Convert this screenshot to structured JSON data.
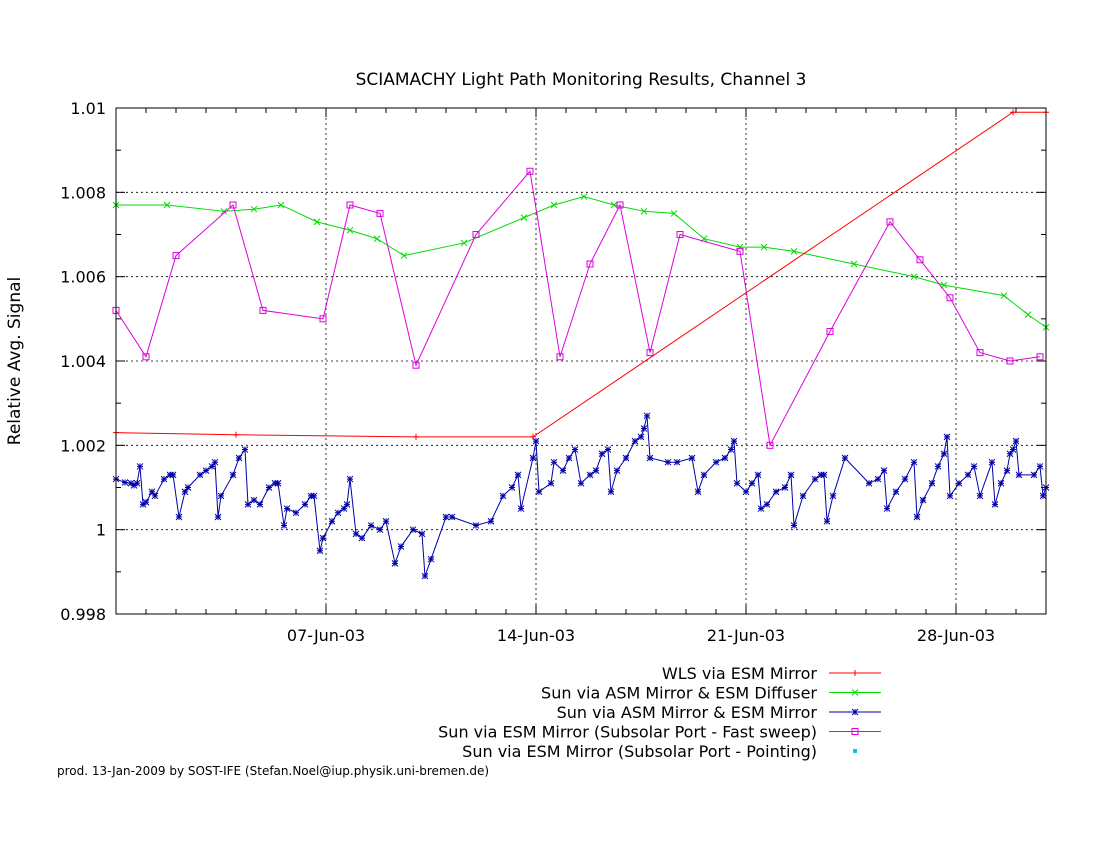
{
  "chart_data": {
    "type": "line",
    "title": "SCIAMACHY Light Path Monitoring Results, Channel 3",
    "xlabel": "",
    "ylabel": "Relative Avg. Signal",
    "xlim": [
      "2003-05-31",
      "2003-07-01"
    ],
    "ylim": [
      0.998,
      1.01
    ],
    "x_ticks": [
      "2003-06-07",
      "2003-06-14",
      "2003-06-21",
      "2003-06-28"
    ],
    "x_tick_labels": [
      "07-Jun-03",
      "14-Jun-03",
      "21-Jun-03",
      "28-Jun-03"
    ],
    "y_ticks": [
      0.998,
      1,
      1.002,
      1.004,
      1.006,
      1.008,
      1.01
    ],
    "y_tick_labels": [
      "0.998",
      "1",
      "1.002",
      "1.004",
      "1.006",
      "1.008",
      "1.01"
    ],
    "grid": true,
    "legend_position": "bottom-right",
    "series": [
      {
        "name": "WLS via ESM Mirror",
        "color": "#ff0000",
        "marker": "plus",
        "points": [
          [
            "2003-05-31",
            1.0023
          ],
          [
            "2003-06-04",
            1.00225
          ],
          [
            "2003-06-10",
            1.0022
          ],
          [
            "2003-06-13.9",
            1.0022
          ],
          [
            "2003-06-29.9",
            1.0099
          ],
          [
            "2003-07-01",
            1.0099
          ]
        ]
      },
      {
        "name": "Sun via ASM Mirror & ESM Diffuser",
        "color": "#00dd00",
        "marker": "cross",
        "points": [
          [
            "2003-05-31",
            1.0077
          ],
          [
            "2003-06-01.7",
            1.0077
          ],
          [
            "2003-06-03.6",
            1.00755
          ],
          [
            "2003-06-04.6",
            1.0076
          ],
          [
            "2003-06-05.5",
            1.0077
          ],
          [
            "2003-06-06.7",
            1.0073
          ],
          [
            "2003-06-07.8",
            1.0071
          ],
          [
            "2003-06-08.7",
            1.0069
          ],
          [
            "2003-06-09.6",
            1.0065
          ],
          [
            "2003-06-11.6",
            1.0068
          ],
          [
            "2003-06-13.6",
            1.0074
          ],
          [
            "2003-06-14.6",
            1.0077
          ],
          [
            "2003-06-15.6",
            1.0079
          ],
          [
            "2003-06-16.6",
            1.0077
          ],
          [
            "2003-06-17.6",
            1.00755
          ],
          [
            "2003-06-18.6",
            1.0075
          ],
          [
            "2003-06-19.6",
            1.0069
          ],
          [
            "2003-06-20.8",
            1.0067
          ],
          [
            "2003-06-21.6",
            1.0067
          ],
          [
            "2003-06-22.6",
            1.0066
          ],
          [
            "2003-06-24.6",
            1.0063
          ],
          [
            "2003-06-26.6",
            1.006
          ],
          [
            "2003-06-27.6",
            1.0058
          ],
          [
            "2003-06-29.6",
            1.00555
          ],
          [
            "2003-06-30.4",
            1.0051
          ],
          [
            "2003-07-01",
            1.0048
          ]
        ]
      },
      {
        "name": "Sun via ASM Mirror & ESM Mirror",
        "color": "#0000aa",
        "marker": "star",
        "points": [
          [
            "2003-05-31",
            1.0012
          ],
          [
            "2003-05-31.3",
            1.00112
          ],
          [
            "2003-05-31.5",
            1.0011
          ],
          [
            "2003-05-31.6",
            1.00105
          ],
          [
            "2003-05-31.7",
            1.0011
          ],
          [
            "2003-05-31.8",
            1.0015
          ],
          [
            "2003-05-31.9",
            1.0006
          ],
          [
            "2003-06-01",
            1.00065
          ],
          [
            "2003-06-01.2",
            1.0009
          ],
          [
            "2003-06-01.3",
            1.0008
          ],
          [
            "2003-06-01.6",
            1.0012
          ],
          [
            "2003-06-01.8",
            1.0013
          ],
          [
            "2003-06-01.9",
            1.0013
          ],
          [
            "2003-06-02.1",
            1.0003
          ],
          [
            "2003-06-02.3",
            1.0009
          ],
          [
            "2003-06-02.4",
            1.001
          ],
          [
            "2003-06-02.8",
            1.0013
          ],
          [
            "2003-06-03",
            1.0014
          ],
          [
            "2003-06-03.2",
            1.0015
          ],
          [
            "2003-06-03.3",
            1.0016
          ],
          [
            "2003-06-03.4",
            1.0003
          ],
          [
            "2003-06-03.5",
            1.0008
          ],
          [
            "2003-06-03.9",
            1.0013
          ],
          [
            "2003-06-04.1",
            1.0017
          ],
          [
            "2003-06-04.3",
            1.0019
          ],
          [
            "2003-06-04.4",
            1.0006
          ],
          [
            "2003-06-04.6",
            1.0007
          ],
          [
            "2003-06-04.8",
            1.0006
          ],
          [
            "2003-06-05.1",
            1.001
          ],
          [
            "2003-06-05.3",
            1.0011
          ],
          [
            "2003-06-05.4",
            1.0011
          ],
          [
            "2003-06-05.6",
            1.0001
          ],
          [
            "2003-06-05.7",
            1.0005
          ],
          [
            "2003-06-06",
            1.0004
          ],
          [
            "2003-06-06.3",
            1.0006
          ],
          [
            "2003-06-06.5",
            1.0008
          ],
          [
            "2003-06-06.6",
            1.0008
          ],
          [
            "2003-06-06.8",
            0.9995
          ],
          [
            "2003-06-06.9",
            0.9998
          ],
          [
            "2003-06-07.2",
            1.0002
          ],
          [
            "2003-06-07.4",
            1.0004
          ],
          [
            "2003-06-07.6",
            1.0005
          ],
          [
            "2003-06-07.7",
            1.0006
          ],
          [
            "2003-06-07.8",
            1.0012
          ],
          [
            "2003-06-08",
            0.9999
          ],
          [
            "2003-06-08.2",
            0.9998
          ],
          [
            "2003-06-08.5",
            1.0001
          ],
          [
            "2003-06-08.8",
            1.0
          ],
          [
            "2003-06-09",
            1.0002
          ],
          [
            "2003-06-09.3",
            0.9992
          ],
          [
            "2003-06-09.5",
            0.9996
          ],
          [
            "2003-06-09.9",
            1.0
          ],
          [
            "2003-06-10.2",
            0.9999
          ],
          [
            "2003-06-10.3",
            0.9989
          ],
          [
            "2003-06-10.5",
            0.9993
          ],
          [
            "2003-06-11",
            1.0003
          ],
          [
            "2003-06-11.2",
            1.0003
          ],
          [
            "2003-06-12",
            1.0001
          ],
          [
            "2003-06-12.5",
            1.0002
          ],
          [
            "2003-06-12.9",
            1.0008
          ],
          [
            "2003-06-13.2",
            1.001
          ],
          [
            "2003-06-13.4",
            1.0013
          ],
          [
            "2003-06-13.5",
            1.0005
          ],
          [
            "2003-06-13.9",
            1.0017
          ],
          [
            "2003-06-14",
            1.0021
          ],
          [
            "2003-06-14.1",
            1.0009
          ],
          [
            "2003-06-14.5",
            1.0011
          ],
          [
            "2003-06-14.6",
            1.0016
          ],
          [
            "2003-06-14.9",
            1.0014
          ],
          [
            "2003-06-15.1",
            1.0017
          ],
          [
            "2003-06-15.3",
            1.0019
          ],
          [
            "2003-06-15.5",
            1.0011
          ],
          [
            "2003-06-15.8",
            1.0013
          ],
          [
            "2003-06-16",
            1.0014
          ],
          [
            "2003-06-16.2",
            1.0018
          ],
          [
            "2003-06-16.4",
            1.0019
          ],
          [
            "2003-06-16.5",
            1.0009
          ],
          [
            "2003-06-16.7",
            1.0014
          ],
          [
            "2003-06-17",
            1.0017
          ],
          [
            "2003-06-17.3",
            1.0021
          ],
          [
            "2003-06-17.5",
            1.0022
          ],
          [
            "2003-06-17.6",
            1.0024
          ],
          [
            "2003-06-17.7",
            1.0027
          ],
          [
            "2003-06-17.8",
            1.0017
          ],
          [
            "2003-06-18.4",
            1.0016
          ],
          [
            "2003-06-18.7",
            1.0016
          ],
          [
            "2003-06-19.2",
            1.0017
          ],
          [
            "2003-06-19.4",
            1.0009
          ],
          [
            "2003-06-19.6",
            1.0013
          ],
          [
            "2003-06-20",
            1.0016
          ],
          [
            "2003-06-20.3",
            1.0017
          ],
          [
            "2003-06-20.5",
            1.0019
          ],
          [
            "2003-06-20.6",
            1.0021
          ],
          [
            "2003-06-20.7",
            1.0011
          ],
          [
            "2003-06-21",
            1.0009
          ],
          [
            "2003-06-21.2",
            1.0011
          ],
          [
            "2003-06-21.4",
            1.0013
          ],
          [
            "2003-06-21.5",
            1.0005
          ],
          [
            "2003-06-21.7",
            1.0006
          ],
          [
            "2003-06-22",
            1.0009
          ],
          [
            "2003-06-22.3",
            1.001
          ],
          [
            "2003-06-22.5",
            1.0013
          ],
          [
            "2003-06-22.6",
            1.0001
          ],
          [
            "2003-06-22.9",
            1.0008
          ],
          [
            "2003-06-23.3",
            1.0012
          ],
          [
            "2003-06-23.5",
            1.0013
          ],
          [
            "2003-06-23.6",
            1.0013
          ],
          [
            "2003-06-23.7",
            1.0002
          ],
          [
            "2003-06-23.9",
            1.0008
          ],
          [
            "2003-06-24.3",
            1.0017
          ],
          [
            "2003-06-25.1",
            1.0011
          ],
          [
            "2003-06-25.4",
            1.0012
          ],
          [
            "2003-06-25.6",
            1.0014
          ],
          [
            "2003-06-25.7",
            1.0005
          ],
          [
            "2003-06-26",
            1.0009
          ],
          [
            "2003-06-26.3",
            1.0012
          ],
          [
            "2003-06-26.6",
            1.0016
          ],
          [
            "2003-06-26.7",
            1.0003
          ],
          [
            "2003-06-26.9",
            1.0007
          ],
          [
            "2003-06-27.2",
            1.0011
          ],
          [
            "2003-06-27.4",
            1.0015
          ],
          [
            "2003-06-27.6",
            1.0018
          ],
          [
            "2003-06-27.7",
            1.0022
          ],
          [
            "2003-06-27.8",
            1.0008
          ],
          [
            "2003-06-28.1",
            1.0011
          ],
          [
            "2003-06-28.4",
            1.0013
          ],
          [
            "2003-06-28.6",
            1.0015
          ],
          [
            "2003-06-28.8",
            1.0008
          ],
          [
            "2003-06-29.2",
            1.0016
          ],
          [
            "2003-06-29.3",
            1.0006
          ],
          [
            "2003-06-29.5",
            1.0011
          ],
          [
            "2003-06-29.7",
            1.0014
          ],
          [
            "2003-06-29.8",
            1.0018
          ],
          [
            "2003-06-29.9",
            1.0019
          ],
          [
            "2003-06-30",
            1.0021
          ],
          [
            "2003-06-30.1",
            1.0013
          ],
          [
            "2003-06-30.6",
            1.0013
          ],
          [
            "2003-06-30.8",
            1.0015
          ],
          [
            "2003-06-30.9",
            1.0008
          ],
          [
            "2003-07-01",
            1.001
          ]
        ]
      },
      {
        "name": "Sun via ESM Mirror (Subsolar Port - Fast sweep)",
        "color": "#dd00dd",
        "marker": "square",
        "points": [
          [
            "2003-05-31",
            1.0052
          ],
          [
            "2003-06-01",
            1.0041
          ],
          [
            "2003-06-02",
            1.0065
          ],
          [
            "2003-06-03.9",
            1.0077
          ],
          [
            "2003-06-04.9",
            1.0052
          ],
          [
            "2003-06-06.9",
            1.005
          ],
          [
            "2003-06-07.8",
            1.0077
          ],
          [
            "2003-06-08.8",
            1.0075
          ],
          [
            "2003-06-10",
            1.0039
          ],
          [
            "2003-06-12",
            1.007
          ],
          [
            "2003-06-13.8",
            1.0085
          ],
          [
            "2003-06-14.8",
            1.0041
          ],
          [
            "2003-06-15.8",
            1.0063
          ],
          [
            "2003-06-16.8",
            1.0077
          ],
          [
            "2003-06-17.8",
            1.0042
          ],
          [
            "2003-06-18.8",
            1.007
          ],
          [
            "2003-06-20.8",
            1.0066
          ],
          [
            "2003-06-21.8",
            1.002
          ],
          [
            "2003-06-23.8",
            1.0047
          ],
          [
            "2003-06-25.8",
            1.0073
          ],
          [
            "2003-06-26.8",
            1.0064
          ],
          [
            "2003-06-27.8",
            1.0055
          ],
          [
            "2003-06-28.8",
            1.0042
          ],
          [
            "2003-06-29.8",
            1.004
          ],
          [
            "2003-06-30.8",
            1.0041
          ]
        ]
      },
      {
        "name": "Sun via ESM Mirror (Subsolar Port - Pointing)",
        "color": "#00ccdd",
        "marker": "dot",
        "points": []
      }
    ]
  },
  "footer": "prod. 13-Jan-2009 by SOST-IFE (Stefan.Noel@iup.physik.uni-bremen.de)"
}
